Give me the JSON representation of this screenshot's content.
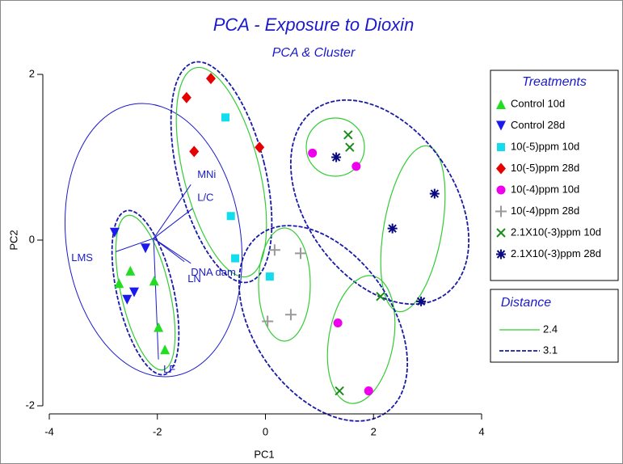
{
  "chart_data": {
    "type": "scatter",
    "title": "PCA - Exposure to Dioxin",
    "subtitle": "PCA & Cluster",
    "x_label": "PC1",
    "y_label": "PC2",
    "xlim": [
      -4,
      4
    ],
    "ylim": [
      -2,
      2
    ],
    "xticks": [
      -4,
      -2,
      0,
      2,
      4
    ],
    "yticks": [
      -2,
      0,
      2
    ],
    "legend_title": "Treatments",
    "series": [
      {
        "name": "Control 10d",
        "color": "#22dd22",
        "marker": "triangle-up",
        "x": [
          -2.5,
          -2.06,
          -2.71,
          -1.98,
          -1.86
        ],
        "y": [
          -0.37,
          -0.49,
          -0.52,
          -1.05,
          -1.32
        ]
      },
      {
        "name": "Control 28d",
        "color": "#1a1aee",
        "marker": "triangle-down",
        "x": [
          -2.79,
          -2.22,
          -2.43,
          -2.56
        ],
        "y": [
          0.09,
          -0.1,
          -0.63,
          -0.72
        ]
      },
      {
        "name": "10(-5)ppm 10d",
        "color": "#11ddee",
        "marker": "square",
        "x": [
          -0.74,
          -0.64,
          -0.56,
          0.08
        ],
        "y": [
          1.48,
          0.29,
          -0.22,
          -0.44
        ]
      },
      {
        "name": "10(-5)ppm 28d",
        "color": "#e60000",
        "marker": "diamond",
        "x": [
          -1.01,
          -1.46,
          -1.32,
          -0.11
        ],
        "y": [
          1.95,
          1.72,
          1.07,
          1.12
        ]
      },
      {
        "name": "10(-4)ppm 10d",
        "color": "#ee00ee",
        "marker": "circle",
        "x": [
          0.87,
          1.68,
          1.34,
          1.91
        ],
        "y": [
          1.05,
          0.89,
          -1.0,
          -1.82
        ]
      },
      {
        "name": "10(-4)ppm 28d",
        "color": "#999999",
        "marker": "plus",
        "x": [
          0.17,
          0.65,
          0.04,
          0.47
        ],
        "y": [
          -0.12,
          -0.16,
          -0.98,
          -0.9
        ]
      },
      {
        "name": "2.1X10(-3)ppm 10d",
        "color": "#1a8c1a",
        "marker": "x",
        "x": [
          1.53,
          1.56,
          2.13,
          1.37
        ],
        "y": [
          1.27,
          1.12,
          -0.68,
          -1.82
        ]
      },
      {
        "name": "2.1X10(-3)ppm 28d",
        "color": "#0a0a80",
        "marker": "star",
        "x": [
          1.31,
          3.13,
          2.35,
          2.88
        ],
        "y": [
          1.0,
          0.56,
          0.14,
          -0.74
        ]
      }
    ],
    "vector_origin": [
      -2.07,
      0.02
    ],
    "vectors": [
      {
        "label": "MNi",
        "x": -1.38,
        "y": 0.67
      },
      {
        "label": "L/C",
        "x": -1.35,
        "y": 0.38
      },
      {
        "label": "LMS",
        "x": -2.77,
        "y": -0.14
      },
      {
        "label": "LN",
        "x": -1.5,
        "y": -0.26
      },
      {
        "label": "DNA dam",
        "x": -1.38,
        "y": -0.28
      },
      {
        "label": "LF",
        "x": -1.98,
        "y": -1.44
      }
    ],
    "distance": {
      "title": "Distance",
      "levels": [
        {
          "value": 2.4,
          "color": "#33cc33",
          "dashed": false
        },
        {
          "value": 3.1,
          "color": "#1a1aaa",
          "dashed": true
        }
      ]
    }
  }
}
